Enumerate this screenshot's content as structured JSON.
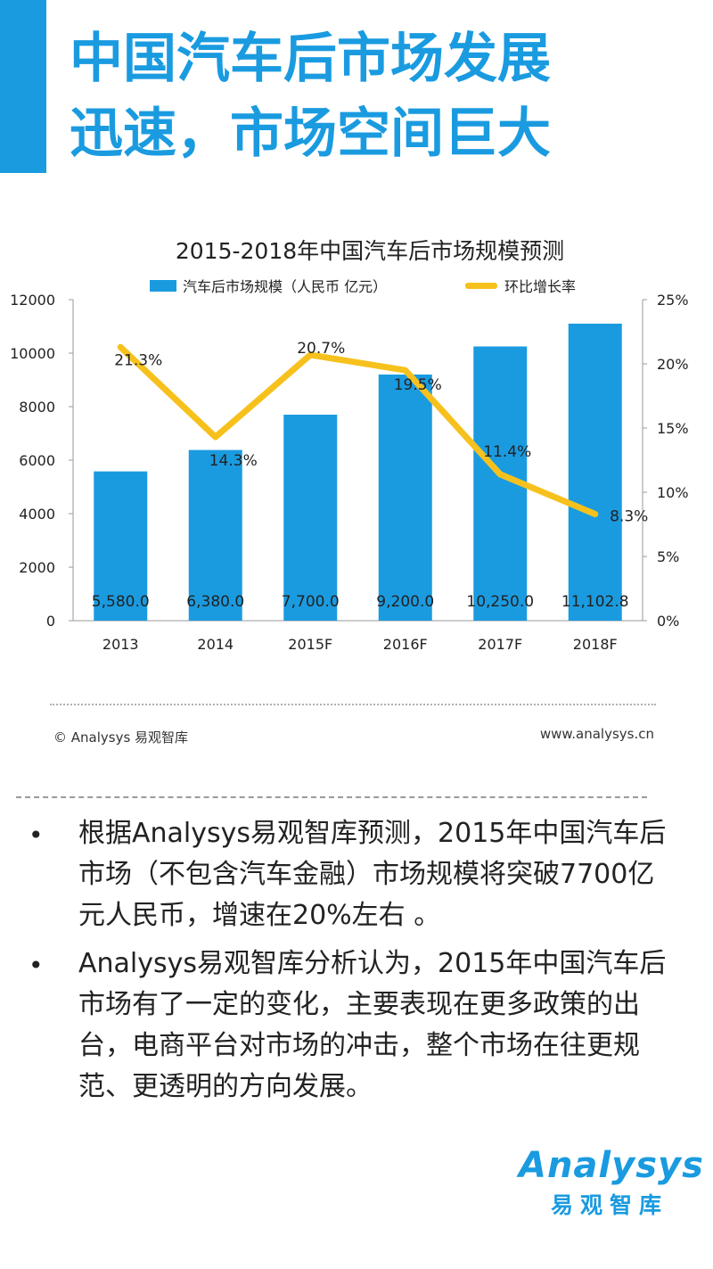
{
  "headline": {
    "line1": "中国汽车后市场发展",
    "line2": "迅速，市场空间巨大"
  },
  "chart_data": {
    "type": "bar",
    "title": "2015-2018年中国汽车后市场规模预测",
    "categories": [
      "2013",
      "2014",
      "2015F",
      "2016F",
      "2017F",
      "2018F"
    ],
    "series": [
      {
        "name": "汽车后市场规模（人民币 亿元）",
        "type": "bar",
        "axis": "left",
        "values": [
          5580.0,
          6380.0,
          7700.0,
          9200.0,
          10250.0,
          11102.8
        ],
        "labels": [
          "5,580.0",
          "6,380.0",
          "7,700.0",
          "9,200.0",
          "10,250.0",
          "11,102.8"
        ]
      },
      {
        "name": "环比增长率",
        "type": "line",
        "axis": "right",
        "values": [
          21.3,
          14.3,
          20.7,
          19.5,
          11.4,
          8.3
        ],
        "labels": [
          "21.3%",
          "14.3%",
          "20.7%",
          "19.5%",
          "11.4%",
          "8.3%"
        ]
      }
    ],
    "left_axis": {
      "min": 0,
      "max": 12000,
      "ticks": [
        "0",
        "2000",
        "4000",
        "6000",
        "8000",
        "10000",
        "12000"
      ]
    },
    "right_axis": {
      "min": 0,
      "max": 25,
      "ticks": [
        "0%",
        "5%",
        "10%",
        "15%",
        "20%",
        "25%"
      ]
    },
    "legend_position": "top",
    "grid": false,
    "colors": {
      "bar": "#1a9be0",
      "line": "#f7c11d"
    }
  },
  "source": {
    "left": "© Analysys 易观智库",
    "right": "www.analysys.cn"
  },
  "bullets": [
    "根据Analysys易观智库预测，2015年中国汽车后市场（不包含汽车金融）市场规模将突破7700亿元人民币，增速在20%左右 。",
    "Analysys易观智库分析认为，2015年中国汽车后市场有了一定的变化，主要表现在更多政策的出台，电商平台对市场的冲击，整个市场在往更规范、更透明的方向发展。"
  ],
  "logo": {
    "word": "Analysys",
    "cn": "易观智库"
  }
}
